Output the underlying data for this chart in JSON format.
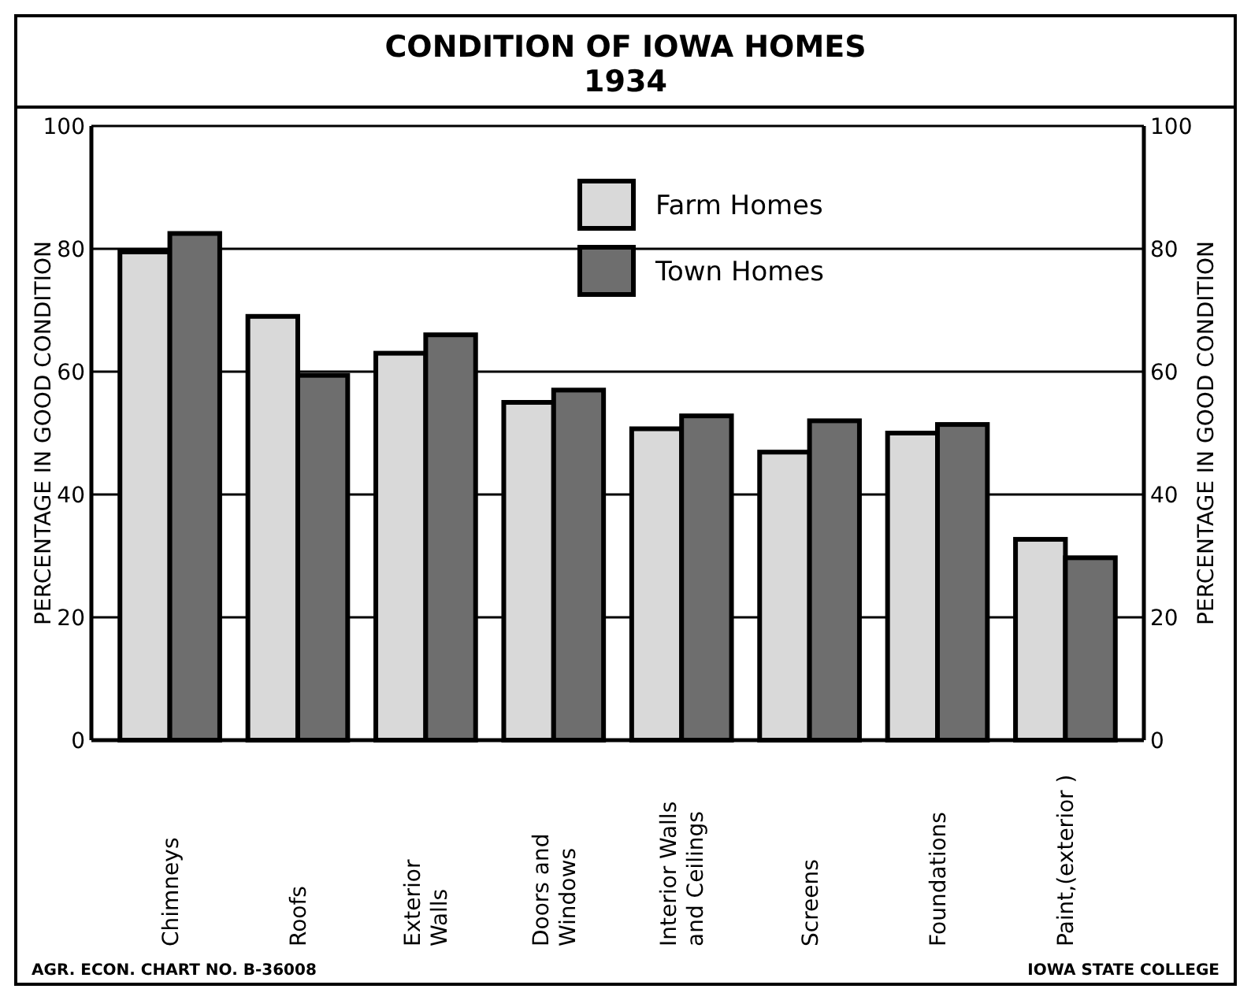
{
  "chart_data": {
    "type": "bar",
    "title": "CONDITION OF IOWA HOMES",
    "subtitle": "1934",
    "ylabel": "PERCENTAGE IN GOOD CONDITION",
    "y2label": "PERCENTAGE IN GOOD CONDITION",
    "categories": [
      "Chimneys",
      "Roofs",
      "Exterior\nWalls",
      "Doors and\nWindows",
      "Interior Walls\nand Ceilings",
      "Screens",
      "Foundations",
      "Paint,(exterior )"
    ],
    "series": [
      {
        "name": "Farm Homes",
        "color": "#d9d9d9",
        "values": [
          79.5,
          69,
          63,
          55,
          50.7,
          46.9,
          50,
          32.7
        ]
      },
      {
        "name": "Town Homes",
        "color": "#6e6e6e",
        "values": [
          82.5,
          59.4,
          66,
          57,
          52.8,
          52,
          51.4,
          29.7
        ]
      }
    ],
    "ylim": [
      0,
      100
    ],
    "yticks": [
      0,
      20,
      40,
      60,
      80,
      100
    ],
    "y2lim": [
      0,
      100
    ],
    "y2ticks": [
      0,
      20,
      40,
      60,
      80,
      100
    ],
    "grid": "y",
    "legend": "top",
    "annotations": [
      "AGR. ECON. CHART NO. B-36008",
      "IOWA STATE COLLEGE"
    ]
  }
}
